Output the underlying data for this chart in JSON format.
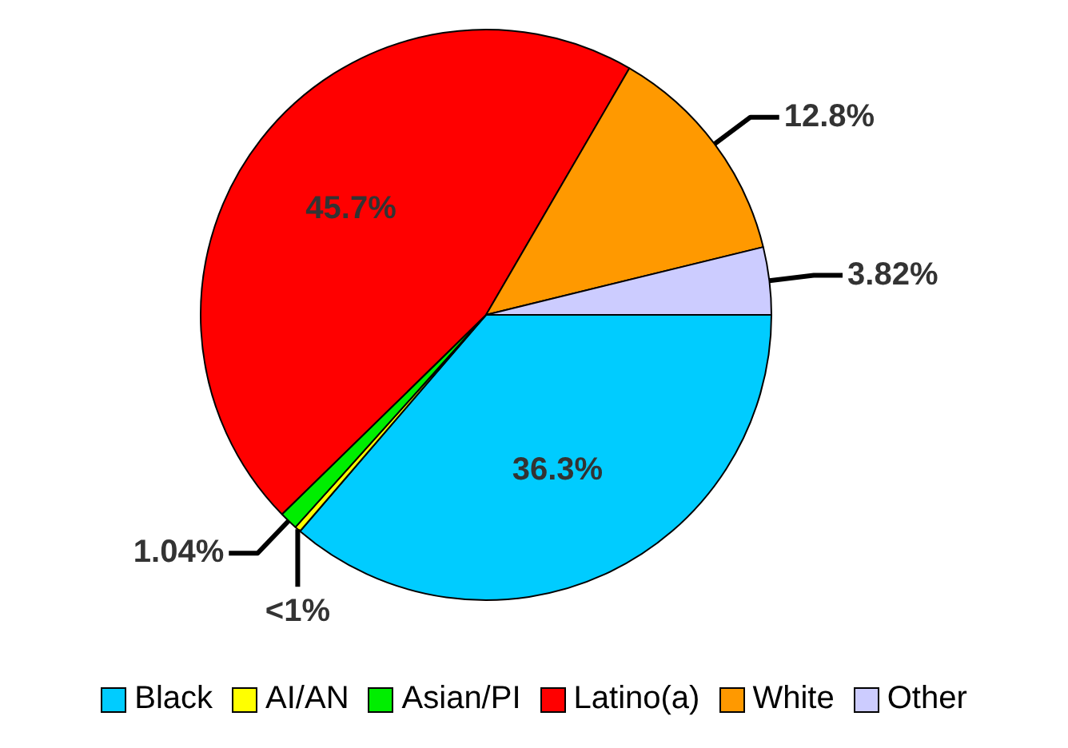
{
  "chart_data": {
    "type": "pie",
    "categories": [
      "Black",
      "AI/AN",
      "Asian/PI",
      "Latino(a)",
      "White",
      "Other"
    ],
    "values": [
      36.3,
      0.34,
      1.04,
      45.7,
      12.8,
      3.82
    ],
    "value_labels": [
      "36.3%",
      "<1%",
      "1.04%",
      "45.7%",
      "12.8%",
      "3.82%"
    ],
    "colors": [
      "#00ccff",
      "#ffff00",
      "#00ee00",
      "#ff0000",
      "#ff9900",
      "#ccccff"
    ],
    "legend": "bottom"
  }
}
